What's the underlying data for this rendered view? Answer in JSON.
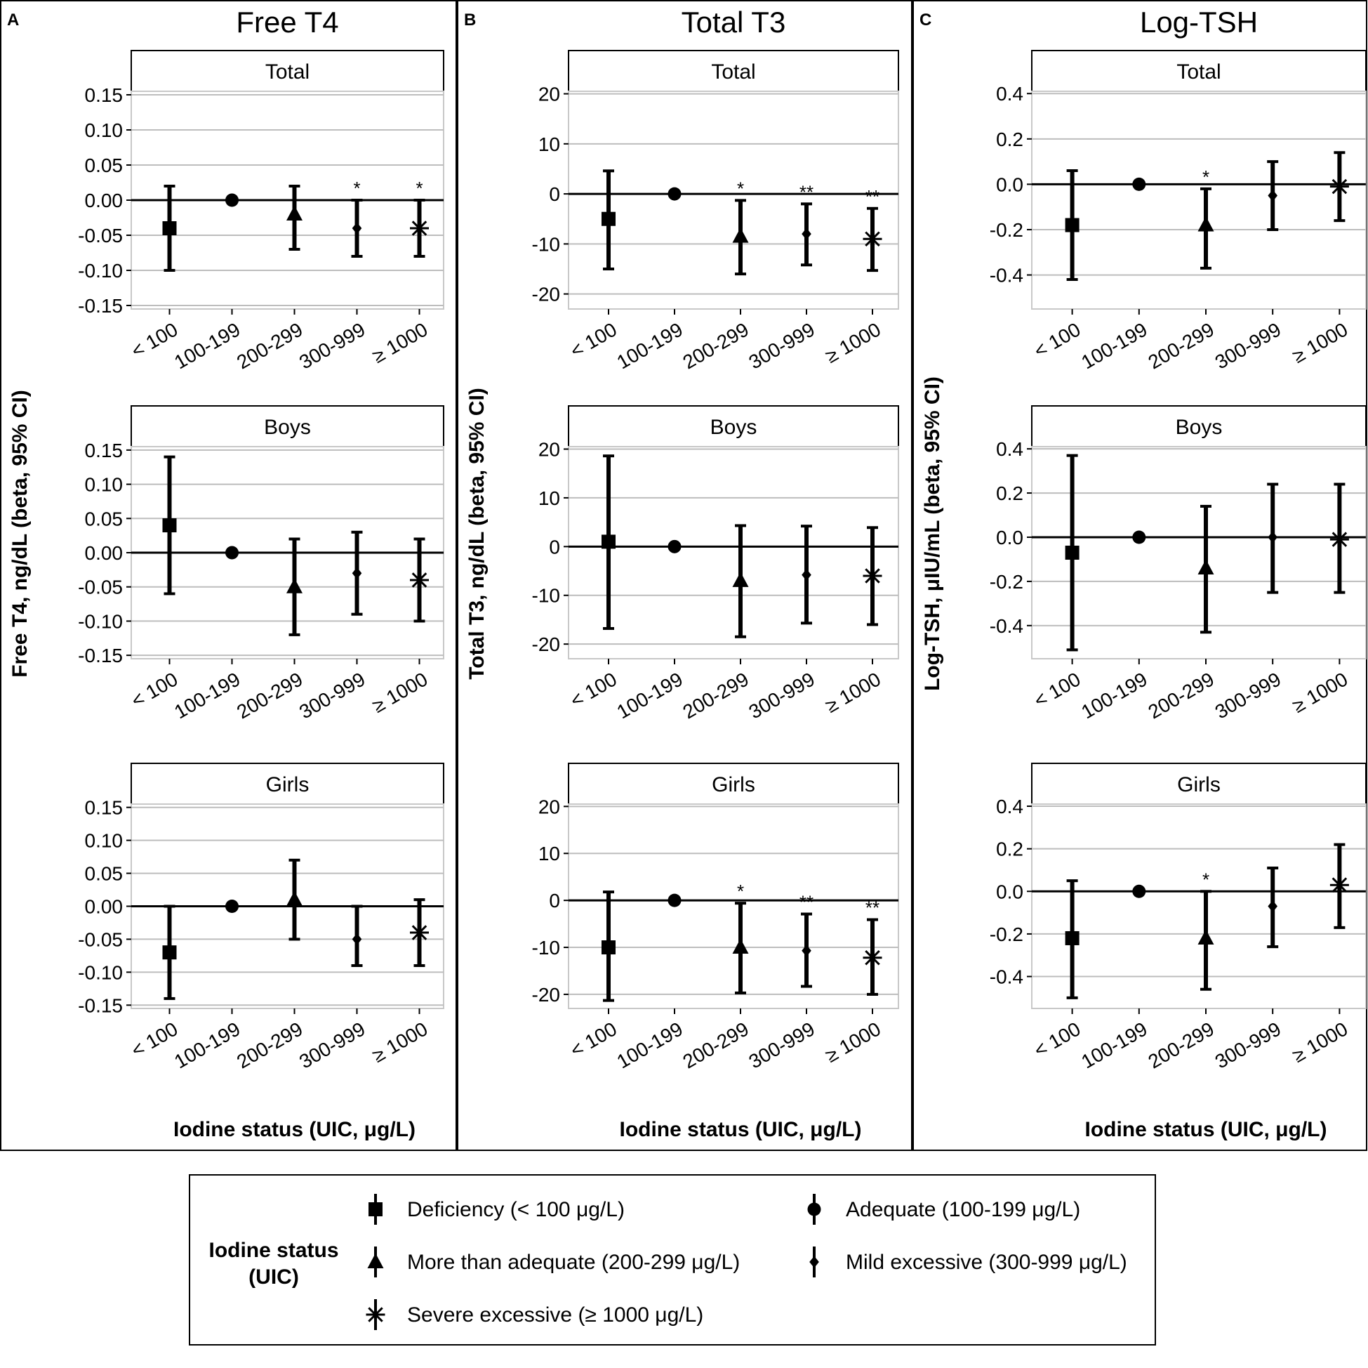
{
  "x_label": "Iodine status (UIC, μg/L)",
  "categories": [
    "< 100",
    "100-199",
    "200-299",
    "300-999",
    "≥ 1000"
  ],
  "marker_shapes": [
    "square",
    "circle",
    "triangle",
    "diamond",
    "asterisk"
  ],
  "chart_data": [
    {
      "type": "errorbar",
      "panel_letter": "A",
      "title": "Free T4",
      "ylabel": "Free T4, ng/dL (beta, 95% CI)",
      "xlabel": "Iodine status (UIC, μg/L)",
      "ylim": [
        -0.155,
        0.155
      ],
      "yticks": [
        0.15,
        0.1,
        0.05,
        0.0,
        -0.05,
        -0.1,
        -0.15
      ],
      "ytick_labels": [
        "0.15",
        "0.10",
        "0.05",
        "0.00",
        "-0.05",
        "-0.10",
        "-0.15"
      ],
      "categories": [
        "< 100",
        "100-199",
        "200-299",
        "300-999",
        "≥ 1000"
      ],
      "subplots": [
        {
          "label": "Total",
          "estimates": [
            -0.04,
            0.0,
            -0.02,
            -0.04,
            -0.04
          ],
          "lower": [
            -0.1,
            null,
            -0.07,
            -0.08,
            -0.08
          ],
          "upper": [
            0.02,
            null,
            0.02,
            0.0,
            0.0
          ],
          "significance": [
            "",
            "",
            "",
            "*",
            "*"
          ]
        },
        {
          "label": "Boys",
          "estimates": [
            0.04,
            0.0,
            -0.05,
            -0.03,
            -0.04
          ],
          "lower": [
            -0.06,
            null,
            -0.12,
            -0.09,
            -0.1
          ],
          "upper": [
            0.14,
            null,
            0.02,
            0.03,
            0.02
          ],
          "significance": [
            "",
            "",
            "",
            "",
            ""
          ]
        },
        {
          "label": "Girls",
          "estimates": [
            -0.07,
            0.0,
            0.01,
            -0.05,
            -0.04
          ],
          "lower": [
            -0.14,
            null,
            -0.05,
            -0.09,
            -0.09
          ],
          "upper": [
            0.0,
            null,
            0.07,
            0.0,
            0.01
          ],
          "significance": [
            "",
            "",
            "",
            "",
            ""
          ]
        }
      ]
    },
    {
      "type": "errorbar",
      "panel_letter": "B",
      "title": "Total T3",
      "ylabel": "Total T3, ng/dL (beta, 95% CI)",
      "xlabel": "Iodine status (UIC, μg/L)",
      "ylim": [
        -23,
        20.5
      ],
      "yticks": [
        20,
        10,
        0,
        -10,
        -20
      ],
      "ytick_labels": [
        "20",
        "10",
        "0",
        "-10",
        "-20"
      ],
      "categories": [
        "< 100",
        "100-199",
        "200-299",
        "300-999",
        "≥ 1000"
      ],
      "subplots": [
        {
          "label": "Total",
          "estimates": [
            -5,
            0,
            -8.5,
            -8,
            -9
          ],
          "lower": [
            -15,
            null,
            -16,
            -14.2,
            -15.3
          ],
          "upper": [
            4.6,
            null,
            -1.3,
            -2,
            -2.9
          ],
          "significance": [
            "",
            "",
            "*",
            "**",
            "**"
          ]
        },
        {
          "label": "Boys",
          "estimates": [
            1,
            0,
            -7,
            -5.8,
            -6
          ],
          "lower": [
            -16.8,
            null,
            -18.5,
            -15.7,
            -16
          ],
          "upper": [
            18.6,
            null,
            4.3,
            4.2,
            3.9
          ],
          "significance": [
            "",
            "",
            "",
            "",
            ""
          ]
        },
        {
          "label": "Girls",
          "estimates": [
            -10,
            0,
            -10,
            -10.7,
            -12.2
          ],
          "lower": [
            -21.3,
            null,
            -19.7,
            -18.3,
            -20
          ],
          "upper": [
            1.8,
            null,
            -0.6,
            -2.9,
            -4.1
          ],
          "significance": [
            "",
            "",
            "*",
            "**",
            "**"
          ]
        }
      ]
    },
    {
      "type": "errorbar",
      "panel_letter": "C",
      "title": "Log-TSH",
      "ylabel": "Log-TSH, μIU/mL (beta, 95% CI)",
      "xlabel": "Iodine status (UIC, μg/L)",
      "ylim": [
        -0.55,
        0.41
      ],
      "yticks": [
        0.4,
        0.2,
        0.0,
        -0.2,
        -0.4
      ],
      "ytick_labels": [
        "0.4",
        "0.2",
        "0.0",
        "-0.2",
        "-0.4"
      ],
      "categories": [
        "< 100",
        "100-199",
        "200-299",
        "300-999",
        "≥ 1000"
      ],
      "subplots": [
        {
          "label": "Total",
          "estimates": [
            -0.18,
            0.0,
            -0.18,
            -0.05,
            -0.01
          ],
          "lower": [
            -0.42,
            null,
            -0.37,
            -0.2,
            -0.16
          ],
          "upper": [
            0.06,
            null,
            -0.02,
            0.1,
            0.14
          ],
          "significance": [
            "",
            "",
            "*",
            "",
            ""
          ]
        },
        {
          "label": "Boys",
          "estimates": [
            -0.07,
            0.0,
            -0.14,
            0.0,
            -0.01
          ],
          "lower": [
            -0.51,
            null,
            -0.43,
            -0.25,
            -0.25
          ],
          "upper": [
            0.37,
            null,
            0.14,
            0.24,
            0.24
          ],
          "significance": [
            "",
            "",
            "",
            "",
            ""
          ]
        },
        {
          "label": "Girls",
          "estimates": [
            -0.22,
            0.0,
            -0.22,
            -0.07,
            0.03
          ],
          "lower": [
            -0.5,
            null,
            -0.46,
            -0.26,
            -0.17
          ],
          "upper": [
            0.05,
            null,
            0.0,
            0.11,
            0.22
          ],
          "significance": [
            "",
            "",
            "*",
            "",
            ""
          ]
        }
      ]
    }
  ],
  "legend": {
    "title_line1": "Iodine status",
    "title_line2": "(UIC)",
    "items": [
      {
        "shape": "square",
        "label": "Deficiency (< 100 μg/L)"
      },
      {
        "shape": "circle",
        "label": "Adequate (100-199 μg/L)"
      },
      {
        "shape": "triangle",
        "label": "More than adequate (200-299 μg/L)"
      },
      {
        "shape": "diamond",
        "label": "Mild excessive (300-999 μg/L)"
      },
      {
        "shape": "asterisk",
        "label": "Severe excessive (≥ 1000 μg/L)"
      }
    ]
  }
}
